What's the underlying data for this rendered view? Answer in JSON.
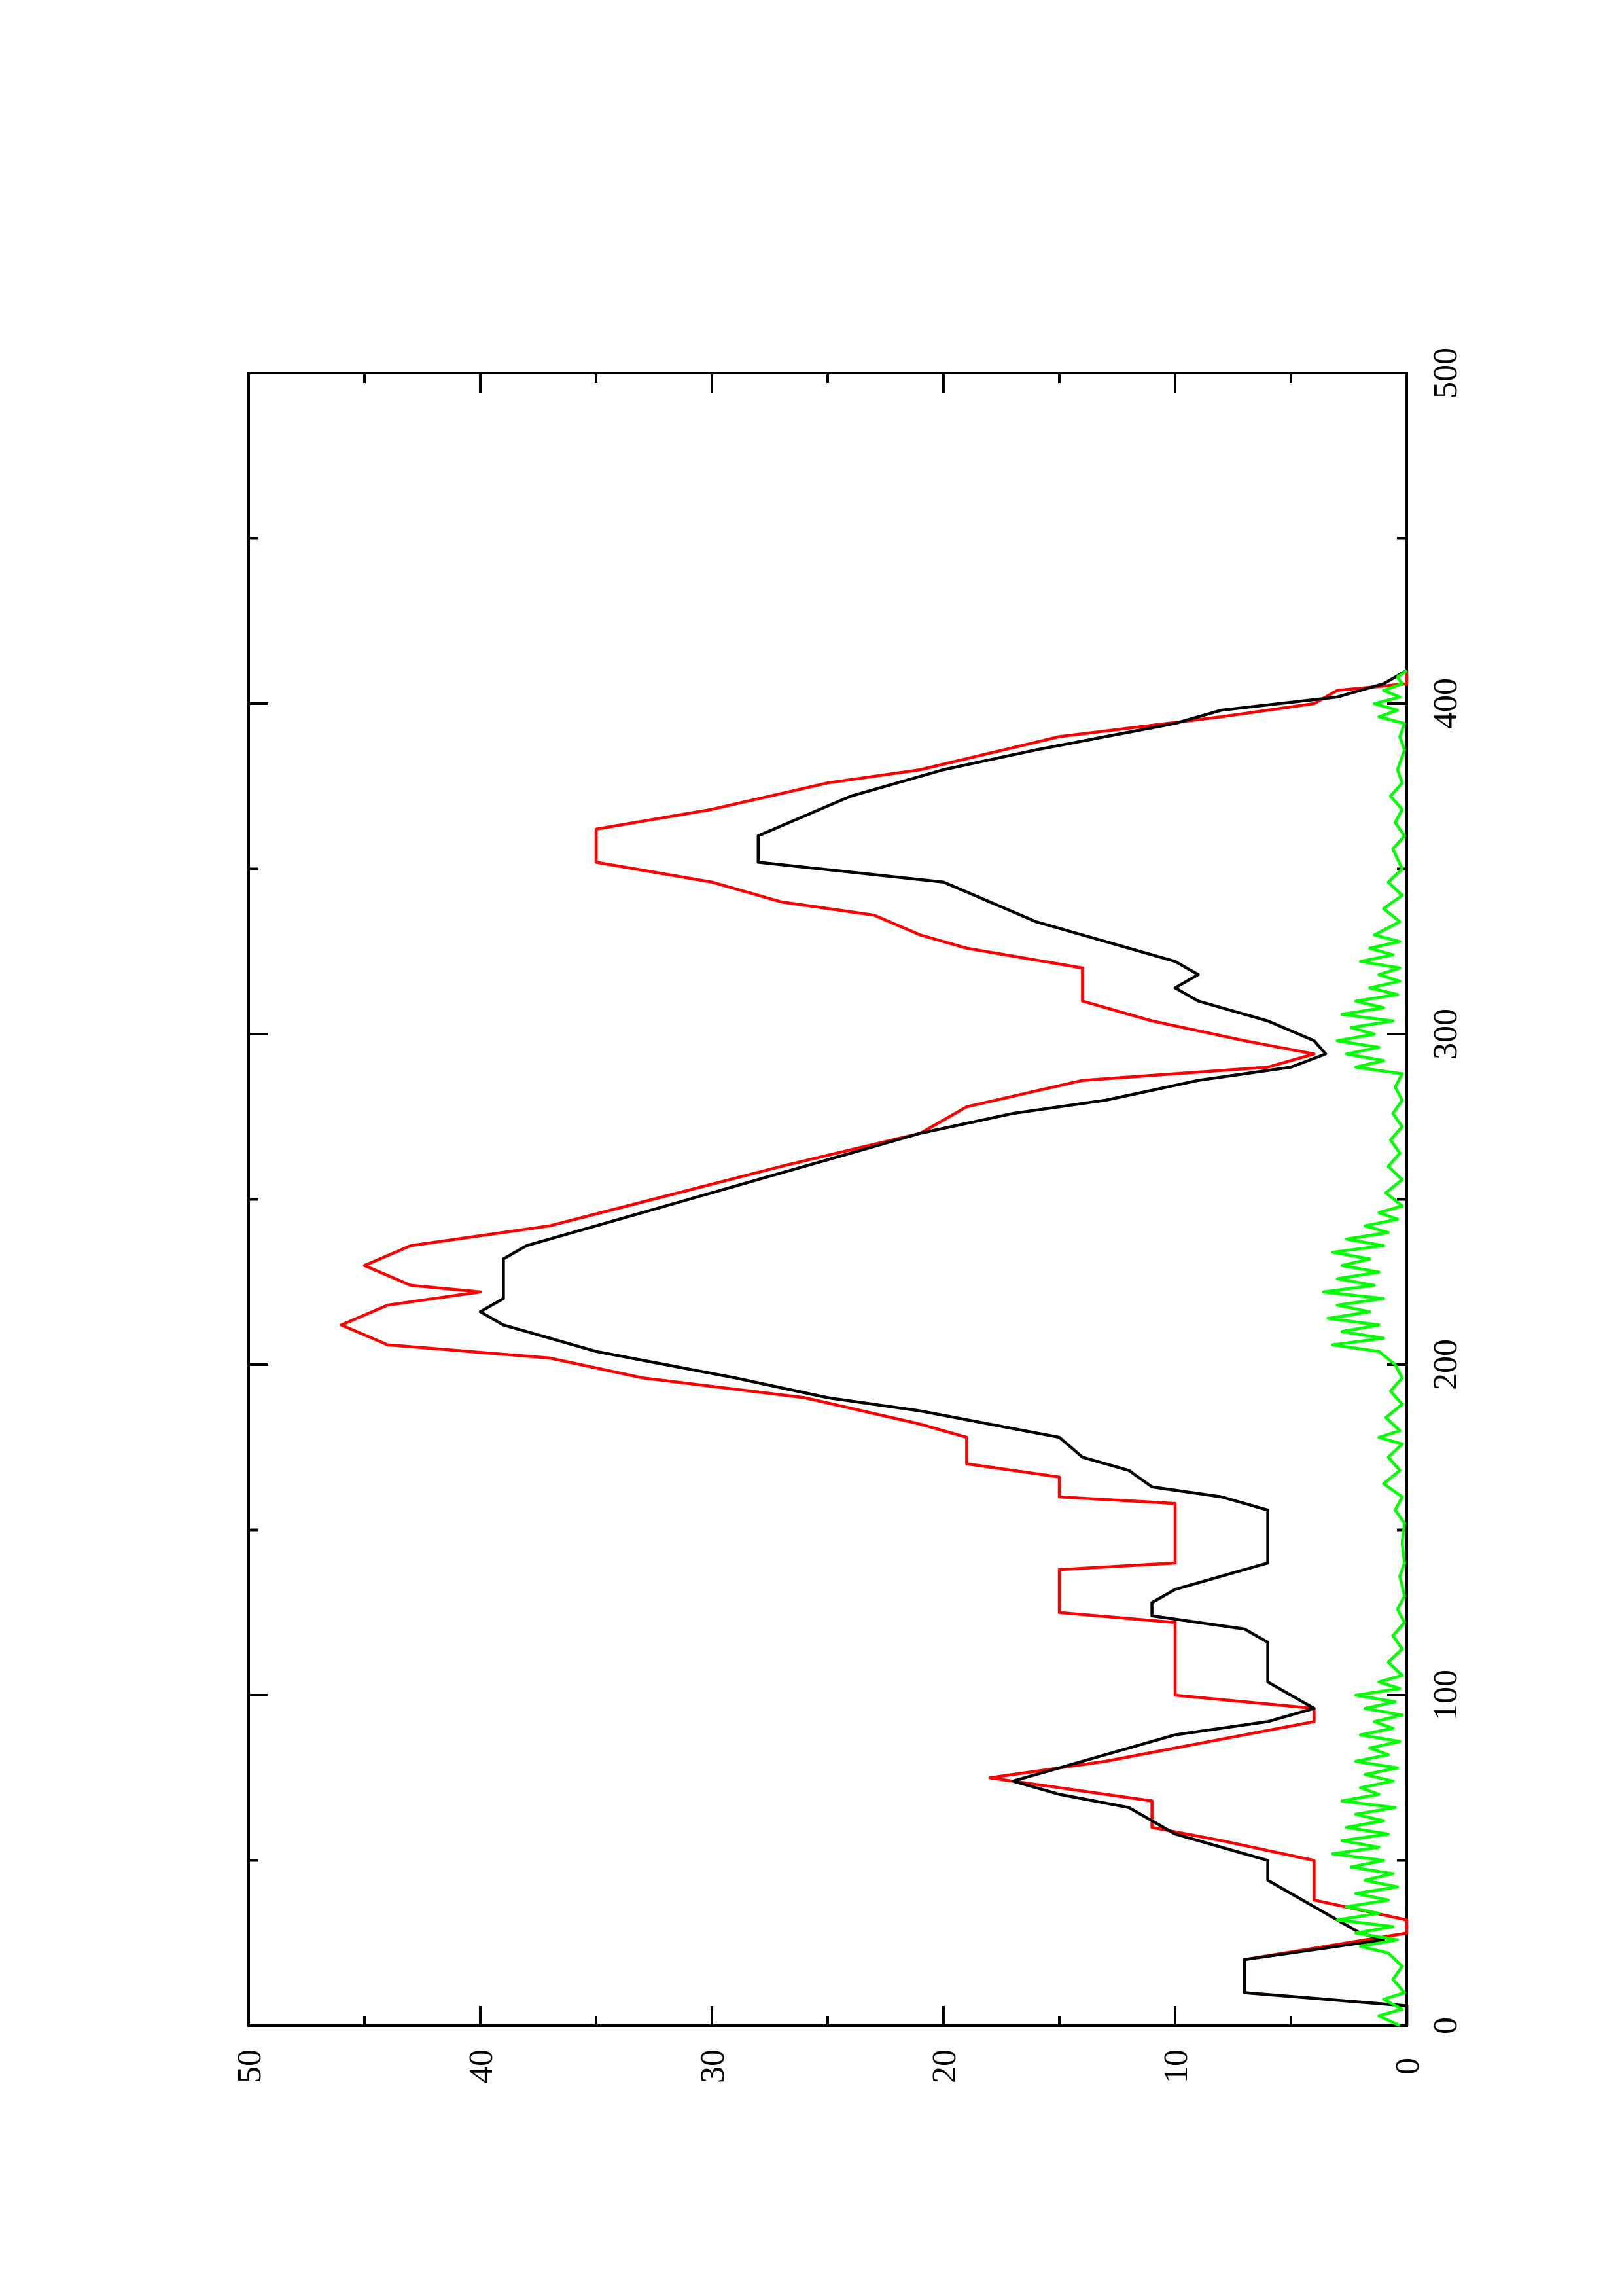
{
  "chart_data": {
    "type": "line",
    "orientation": "rotated-90-ccw",
    "title": "",
    "xlabel": "",
    "ylabel": "",
    "xlim": [
      0,
      500
    ],
    "ylim": [
      0,
      50
    ],
    "x_ticks": [
      "0",
      "100",
      "200",
      "300",
      "400",
      "500"
    ],
    "y_ticks": [
      "0",
      "10",
      "20",
      "30",
      "40",
      "50"
    ],
    "grid": false,
    "legend": "none",
    "series": [
      {
        "color": "#ff0000",
        "style": "step",
        "points": [
          [
            0,
            0
          ],
          [
            6,
            0
          ],
          [
            10,
            7
          ],
          [
            20,
            7
          ],
          [
            28,
            0
          ],
          [
            32,
            0
          ],
          [
            38,
            4
          ],
          [
            50,
            4
          ],
          [
            56,
            8
          ],
          [
            60,
            11
          ],
          [
            68,
            11
          ],
          [
            75,
            18
          ],
          [
            80,
            13
          ],
          [
            88,
            7
          ],
          [
            92,
            4
          ],
          [
            96,
            4
          ],
          [
            100,
            10
          ],
          [
            122,
            10
          ],
          [
            125,
            15
          ],
          [
            138,
            15
          ],
          [
            140,
            10
          ],
          [
            158,
            10
          ],
          [
            160,
            15
          ],
          [
            166,
            15
          ],
          [
            170,
            19
          ],
          [
            178,
            19
          ],
          [
            182,
            21
          ],
          [
            190,
            26
          ],
          [
            196,
            33
          ],
          [
            202,
            37
          ],
          [
            206,
            44
          ],
          [
            212,
            46
          ],
          [
            218,
            44
          ],
          [
            222,
            40
          ],
          [
            224,
            43
          ],
          [
            230,
            45
          ],
          [
            236,
            43
          ],
          [
            242,
            37
          ],
          [
            260,
            27
          ],
          [
            270,
            21
          ],
          [
            278,
            19
          ],
          [
            286,
            14
          ],
          [
            290,
            6
          ],
          [
            294,
            4
          ],
          [
            298,
            7
          ],
          [
            304,
            11
          ],
          [
            310,
            14
          ],
          [
            320,
            14
          ],
          [
            326,
            19
          ],
          [
            330,
            21
          ],
          [
            336,
            23
          ],
          [
            340,
            27
          ],
          [
            346,
            30
          ],
          [
            352,
            35
          ],
          [
            362,
            35
          ],
          [
            368,
            30
          ],
          [
            376,
            25
          ],
          [
            380,
            21
          ],
          [
            390,
            15
          ],
          [
            396,
            8
          ],
          [
            400,
            4
          ],
          [
            404,
            3
          ],
          [
            406,
            0
          ],
          [
            410,
            0
          ]
        ]
      },
      {
        "color": "#000000",
        "style": "line",
        "points": [
          [
            0,
            0
          ],
          [
            6,
            0
          ],
          [
            10,
            7
          ],
          [
            20,
            7
          ],
          [
            26,
            1
          ],
          [
            28,
            2
          ],
          [
            32,
            3
          ],
          [
            36,
            4
          ],
          [
            40,
            5
          ],
          [
            44,
            6
          ],
          [
            50,
            6
          ],
          [
            54,
            8
          ],
          [
            58,
            10
          ],
          [
            62,
            11
          ],
          [
            66,
            12
          ],
          [
            70,
            15
          ],
          [
            74,
            17
          ],
          [
            76,
            16
          ],
          [
            80,
            14
          ],
          [
            84,
            12
          ],
          [
            88,
            10
          ],
          [
            92,
            6
          ],
          [
            96,
            4
          ],
          [
            100,
            5
          ],
          [
            104,
            6
          ],
          [
            110,
            6
          ],
          [
            116,
            6
          ],
          [
            120,
            7
          ],
          [
            124,
            11
          ],
          [
            128,
            11
          ],
          [
            132,
            10
          ],
          [
            140,
            6
          ],
          [
            156,
            6
          ],
          [
            160,
            8
          ],
          [
            163,
            11
          ],
          [
            168,
            12
          ],
          [
            172,
            14
          ],
          [
            178,
            15
          ],
          [
            182,
            18
          ],
          [
            186,
            21
          ],
          [
            190,
            25
          ],
          [
            196,
            29
          ],
          [
            200,
            32
          ],
          [
            204,
            35
          ],
          [
            208,
            37
          ],
          [
            212,
            39
          ],
          [
            216,
            40
          ],
          [
            220,
            39
          ],
          [
            224,
            39
          ],
          [
            228,
            39
          ],
          [
            232,
            39
          ],
          [
            236,
            38
          ],
          [
            240,
            36
          ],
          [
            244,
            34
          ],
          [
            250,
            31
          ],
          [
            254,
            29
          ],
          [
            258,
            27
          ],
          [
            262,
            25
          ],
          [
            266,
            23
          ],
          [
            270,
            21
          ],
          [
            276,
            17
          ],
          [
            280,
            13
          ],
          [
            286,
            9
          ],
          [
            290,
            5
          ],
          [
            294,
            3.5
          ],
          [
            298,
            4
          ],
          [
            304,
            6
          ],
          [
            310,
            9
          ],
          [
            314,
            10
          ],
          [
            318,
            9
          ],
          [
            322,
            10
          ],
          [
            326,
            12
          ],
          [
            330,
            14
          ],
          [
            334,
            16
          ],
          [
            340,
            18
          ],
          [
            346,
            20
          ],
          [
            352,
            28
          ],
          [
            360,
            28
          ],
          [
            366,
            26
          ],
          [
            372,
            24
          ],
          [
            380,
            20
          ],
          [
            386,
            16
          ],
          [
            390,
            13
          ],
          [
            394,
            10
          ],
          [
            398,
            8
          ],
          [
            402,
            3
          ],
          [
            406,
            1
          ],
          [
            410,
            0
          ]
        ]
      },
      {
        "color": "#00ff00",
        "style": "noisy",
        "points": [
          [
            0,
            0.3
          ],
          [
            3,
            1.2
          ],
          [
            5,
            0.2
          ],
          [
            8,
            1.0
          ],
          [
            10,
            0.1
          ],
          [
            14,
            0.6
          ],
          [
            18,
            0.2
          ],
          [
            22,
            0.8
          ],
          [
            24,
            2.0
          ],
          [
            26,
            0.4
          ],
          [
            28,
            2.2
          ],
          [
            30,
            0.6
          ],
          [
            32,
            3.0
          ],
          [
            34,
            1.2
          ],
          [
            36,
            2.6
          ],
          [
            38,
            0.8
          ],
          [
            40,
            2.2
          ],
          [
            42,
            0.4
          ],
          [
            44,
            1.8
          ],
          [
            46,
            0.6
          ],
          [
            48,
            2.4
          ],
          [
            50,
            1.0
          ],
          [
            52,
            3.2
          ],
          [
            54,
            1.2
          ],
          [
            56,
            2.8
          ],
          [
            58,
            0.8
          ],
          [
            60,
            2.6
          ],
          [
            62,
            1.0
          ],
          [
            64,
            2.2
          ],
          [
            66,
            0.5
          ],
          [
            68,
            2.8
          ],
          [
            70,
            1.2
          ],
          [
            72,
            2.0
          ],
          [
            74,
            0.6
          ],
          [
            76,
            1.8
          ],
          [
            78,
            0.4
          ],
          [
            80,
            2.2
          ],
          [
            82,
            0.8
          ],
          [
            84,
            1.6
          ],
          [
            86,
            0.3
          ],
          [
            88,
            2.0
          ],
          [
            90,
            0.6
          ],
          [
            92,
            1.4
          ],
          [
            94,
            0.2
          ],
          [
            96,
            1.8
          ],
          [
            98,
            0.5
          ],
          [
            100,
            2.2
          ],
          [
            102,
            0.3
          ],
          [
            104,
            1.2
          ],
          [
            106,
            0.2
          ],
          [
            110,
            0.8
          ],
          [
            114,
            0.2
          ],
          [
            118,
            0.6
          ],
          [
            122,
            0.1
          ],
          [
            126,
            0.4
          ],
          [
            130,
            0.1
          ],
          [
            136,
            0.3
          ],
          [
            140,
            0.1
          ],
          [
            146,
            0.2
          ],
          [
            152,
            0.1
          ],
          [
            156,
            0.5
          ],
          [
            160,
            0.2
          ],
          [
            164,
            1.0
          ],
          [
            168,
            0.3
          ],
          [
            172,
            0.8
          ],
          [
            176,
            0.2
          ],
          [
            178,
            1.2
          ],
          [
            180,
            0.3
          ],
          [
            184,
            0.9
          ],
          [
            188,
            0.2
          ],
          [
            192,
            0.7
          ],
          [
            196,
            0.2
          ],
          [
            200,
            0.5
          ],
          [
            204,
            1.2
          ],
          [
            206,
            3.2
          ],
          [
            208,
            1.0
          ],
          [
            210,
            2.8
          ],
          [
            212,
            1.2
          ],
          [
            214,
            3.4
          ],
          [
            216,
            1.6
          ],
          [
            218,
            3.0
          ],
          [
            220,
            1.0
          ],
          [
            222,
            3.6
          ],
          [
            224,
            1.4
          ],
          [
            226,
            3.0
          ],
          [
            228,
            1.2
          ],
          [
            230,
            2.8
          ],
          [
            232,
            1.6
          ],
          [
            234,
            3.2
          ],
          [
            236,
            1.0
          ],
          [
            238,
            2.6
          ],
          [
            240,
            0.8
          ],
          [
            242,
            1.8
          ],
          [
            244,
            0.4
          ],
          [
            246,
            1.2
          ],
          [
            248,
            0.2
          ],
          [
            252,
            0.9
          ],
          [
            256,
            0.2
          ],
          [
            260,
            0.8
          ],
          [
            264,
            0.3
          ],
          [
            268,
            0.7
          ],
          [
            272,
            0.2
          ],
          [
            276,
            0.6
          ],
          [
            280,
            0.2
          ],
          [
            284,
            0.5
          ],
          [
            288,
            0.2
          ],
          [
            290,
            2.2
          ],
          [
            292,
            1.0
          ],
          [
            294,
            2.6
          ],
          [
            296,
            1.2
          ],
          [
            298,
            3.0
          ],
          [
            300,
            1.4
          ],
          [
            302,
            2.4
          ],
          [
            304,
            0.6
          ],
          [
            306,
            2.8
          ],
          [
            308,
            1.0
          ],
          [
            310,
            2.2
          ],
          [
            312,
            0.4
          ],
          [
            314,
            1.6
          ],
          [
            316,
            0.3
          ],
          [
            318,
            1.2
          ],
          [
            320,
            0.3
          ],
          [
            322,
            2.0
          ],
          [
            324,
            0.6
          ],
          [
            326,
            1.6
          ],
          [
            328,
            0.3
          ],
          [
            330,
            1.4
          ],
          [
            334,
            0.3
          ],
          [
            338,
            1.0
          ],
          [
            342,
            0.2
          ],
          [
            346,
            0.8
          ],
          [
            350,
            0.2
          ],
          [
            356,
            0.6
          ],
          [
            360,
            0.1
          ],
          [
            364,
            0.5
          ],
          [
            368,
            0.2
          ],
          [
            372,
            0.7
          ],
          [
            376,
            0.2
          ],
          [
            380,
            0.4
          ],
          [
            386,
            0.1
          ],
          [
            390,
            0.3
          ],
          [
            394,
            0.1
          ],
          [
            396,
            1.2
          ],
          [
            398,
            0.4
          ],
          [
            400,
            1.4
          ],
          [
            402,
            0.3
          ],
          [
            404,
            1.0
          ],
          [
            406,
            0.2
          ],
          [
            408,
            0.4
          ],
          [
            410,
            0
          ]
        ]
      }
    ]
  }
}
